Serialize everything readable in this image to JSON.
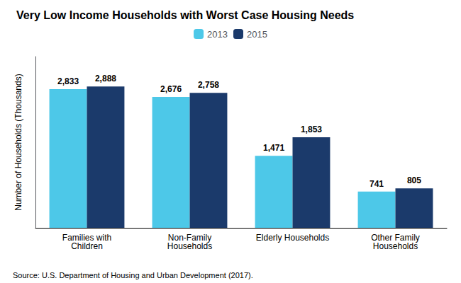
{
  "chart_data": {
    "type": "bar",
    "title": "Very Low Income Households with Worst Case Housing Needs",
    "categories": [
      "Families with\nChildren",
      "Non-Family\nHouseholds",
      "Elderly Households",
      "Other Family\nHouseholds"
    ],
    "series": [
      {
        "name": "2013",
        "color": "#4DC8E8",
        "values": [
          2833,
          2676,
          1471,
          741
        ],
        "value_labels": [
          "2,833",
          "2,676",
          "1,471",
          "741"
        ]
      },
      {
        "name": "2015",
        "color": "#1B3A6B",
        "values": [
          2888,
          2758,
          1853,
          805
        ],
        "value_labels": [
          "2,888",
          "2,758",
          "1,853",
          "805"
        ]
      }
    ],
    "ylabel": "Number of Households (Thousands)",
    "ylim": [
      0,
      3500
    ],
    "tick_labels": "x",
    "grid": false,
    "legend": "top",
    "data_labels": true,
    "annotations": [
      "Source: U.S. Department of Housing and Urban Development (2017)."
    ]
  }
}
